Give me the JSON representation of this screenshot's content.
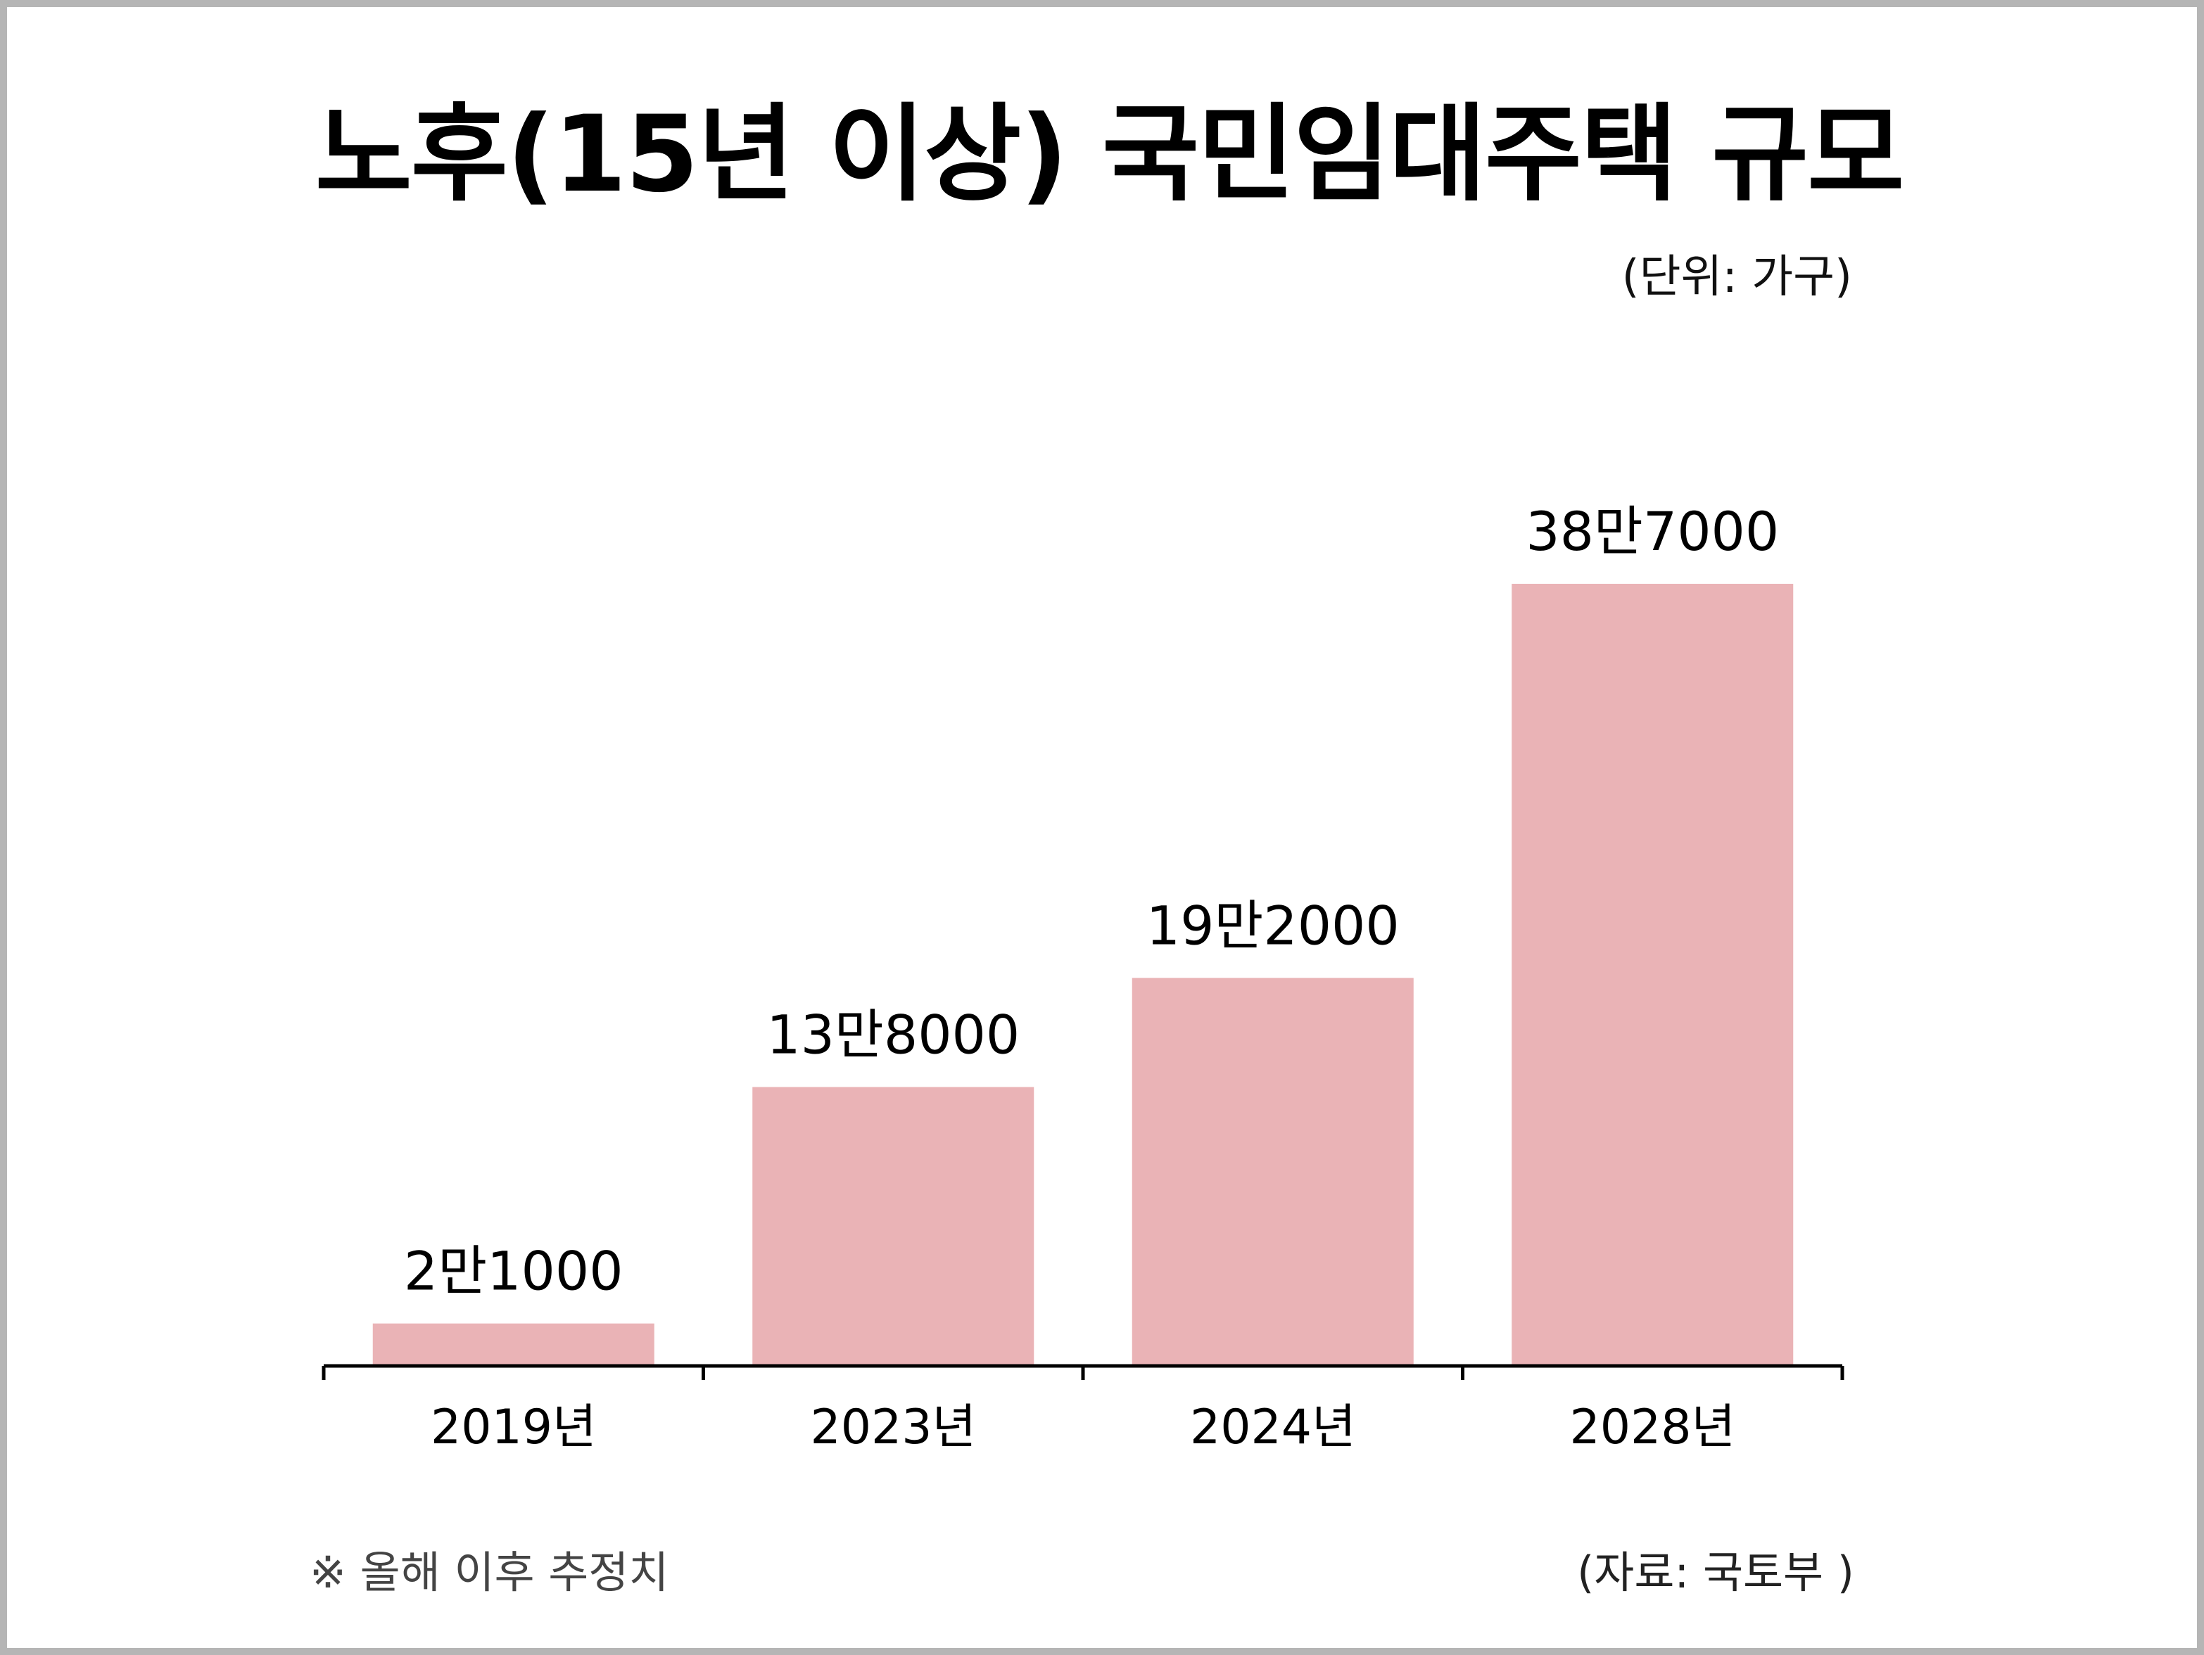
{
  "title": "노후(15년 이상) 국민임대주택 규모",
  "unit_label": "(단위: 가구)",
  "footnote": "※ 올해 이후 추정치",
  "source": "(자료: 국토부 )",
  "colors": {
    "bar": "#eab3b6",
    "axis": "#000000",
    "frame": "#b5b5b5"
  },
  "chart_data": {
    "type": "bar",
    "categories": [
      "2019년",
      "2023년",
      "2024년",
      "2028년"
    ],
    "values": [
      21000,
      138000,
      192000,
      387000
    ],
    "data_labels": [
      "2만1000",
      "13만8000",
      "19만2000",
      "38만7000"
    ],
    "title": "노후(15년 이상) 국민임대주택 규모",
    "unit": "(단위: 가구)",
    "ylim": [
      0,
      387000
    ],
    "grid": false,
    "legend": "none"
  }
}
